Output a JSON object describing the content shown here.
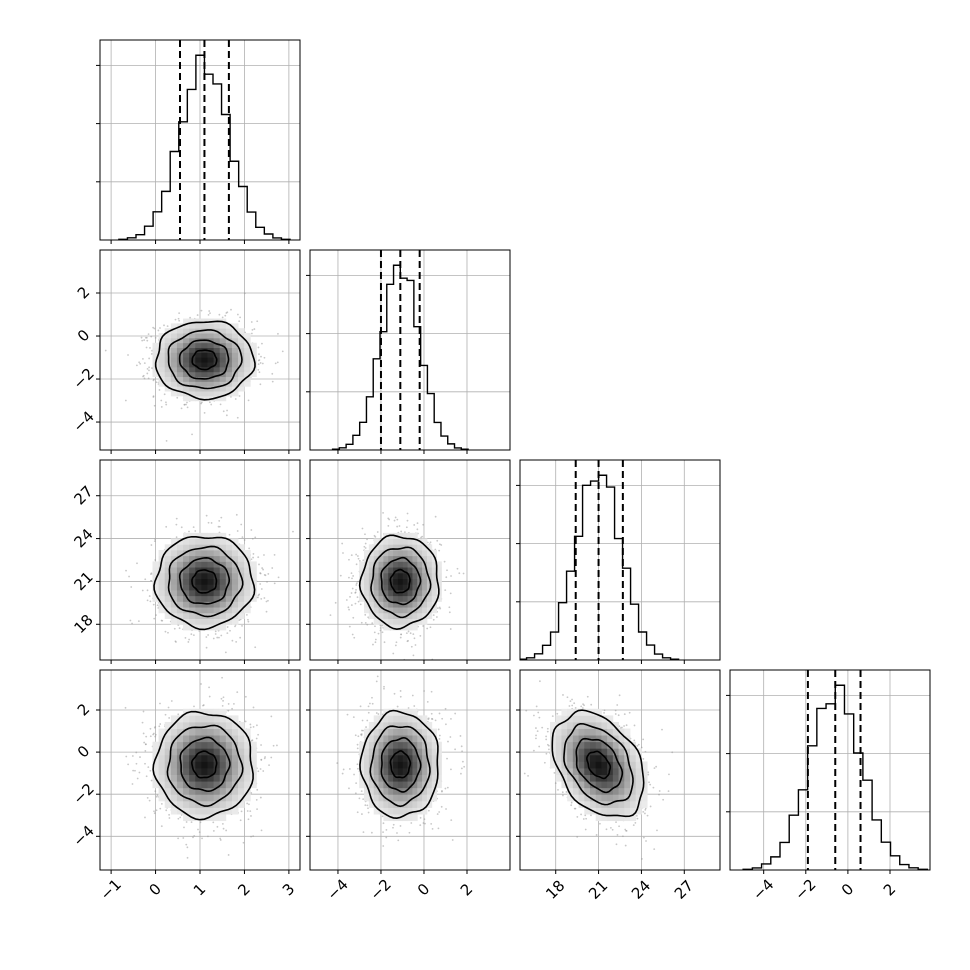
{
  "chart_data": {
    "type": "corner",
    "title": "",
    "grid": true,
    "parameters": [
      {
        "name": "",
        "mean": 1.1,
        "std": 0.55,
        "range": [
          -1.25,
          3.25
        ],
        "ticks": [
          -1,
          0,
          1,
          2,
          3
        ],
        "quantiles": [
          0.55,
          1.1,
          1.65
        ]
      },
      {
        "name": "",
        "mean": -1.1,
        "std": 0.9,
        "range": [
          -5.3,
          4.0
        ],
        "ticks": [
          -4,
          -2,
          0,
          2
        ],
        "quantiles": [
          -2.0,
          -1.1,
          -0.2
        ]
      },
      {
        "name": "",
        "mean": 21.0,
        "std": 1.6,
        "range": [
          15.5,
          29.5
        ],
        "ticks": [
          18,
          21,
          24,
          27
        ],
        "quantiles": [
          19.4,
          21.0,
          22.7
        ]
      },
      {
        "name": "",
        "mean": -0.6,
        "std": 1.25,
        "range": [
          -5.6,
          3.9
        ],
        "ticks": [
          -4,
          -2,
          0,
          2
        ],
        "quantiles": [
          -1.9,
          -0.6,
          0.6
        ]
      }
    ],
    "correlations": [
      [
        0,
        1,
        0.0
      ],
      [
        0,
        2,
        0.0
      ],
      [
        0,
        3,
        0.0
      ],
      [
        1,
        2,
        0.0
      ],
      [
        1,
        3,
        0.0
      ],
      [
        2,
        3,
        -0.35
      ]
    ],
    "histogram_bins": 20,
    "scatter_points_per_panel": 1400,
    "contour_levels_sigma": [
      0.5,
      1.0,
      1.5,
      2.0
    ],
    "colors": {
      "points": "#9a9a9a",
      "lines": "#000000",
      "grid": "#b0b0b0"
    }
  }
}
